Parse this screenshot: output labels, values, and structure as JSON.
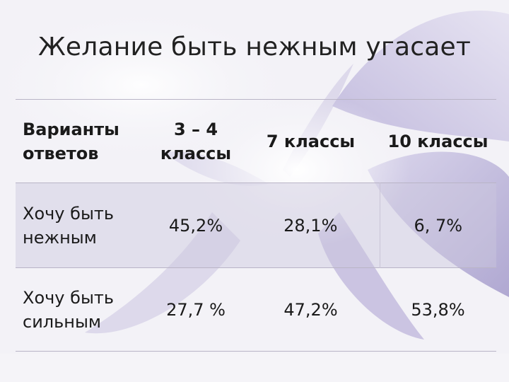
{
  "slide": {
    "title": "Желание быть нежным угасает"
  },
  "table": {
    "header": {
      "col0": "Варианты ответов",
      "col1": "3 – 4 классы",
      "col2": "7 классы",
      "col3": "10 классы"
    },
    "rows": [
      {
        "label": "Хочу быть нежным",
        "v1": "45,2%",
        "v2": "28,1%",
        "v3": "6, 7%"
      },
      {
        "label": "Хочу быть сильным",
        "v1": "27,7 %",
        "v2": "47,2%",
        "v3": "53,8%"
      }
    ]
  },
  "colors": {
    "background": "#f4f3f8",
    "petal": "#b8b0d6",
    "highlight_row": "#d9d4e8"
  }
}
